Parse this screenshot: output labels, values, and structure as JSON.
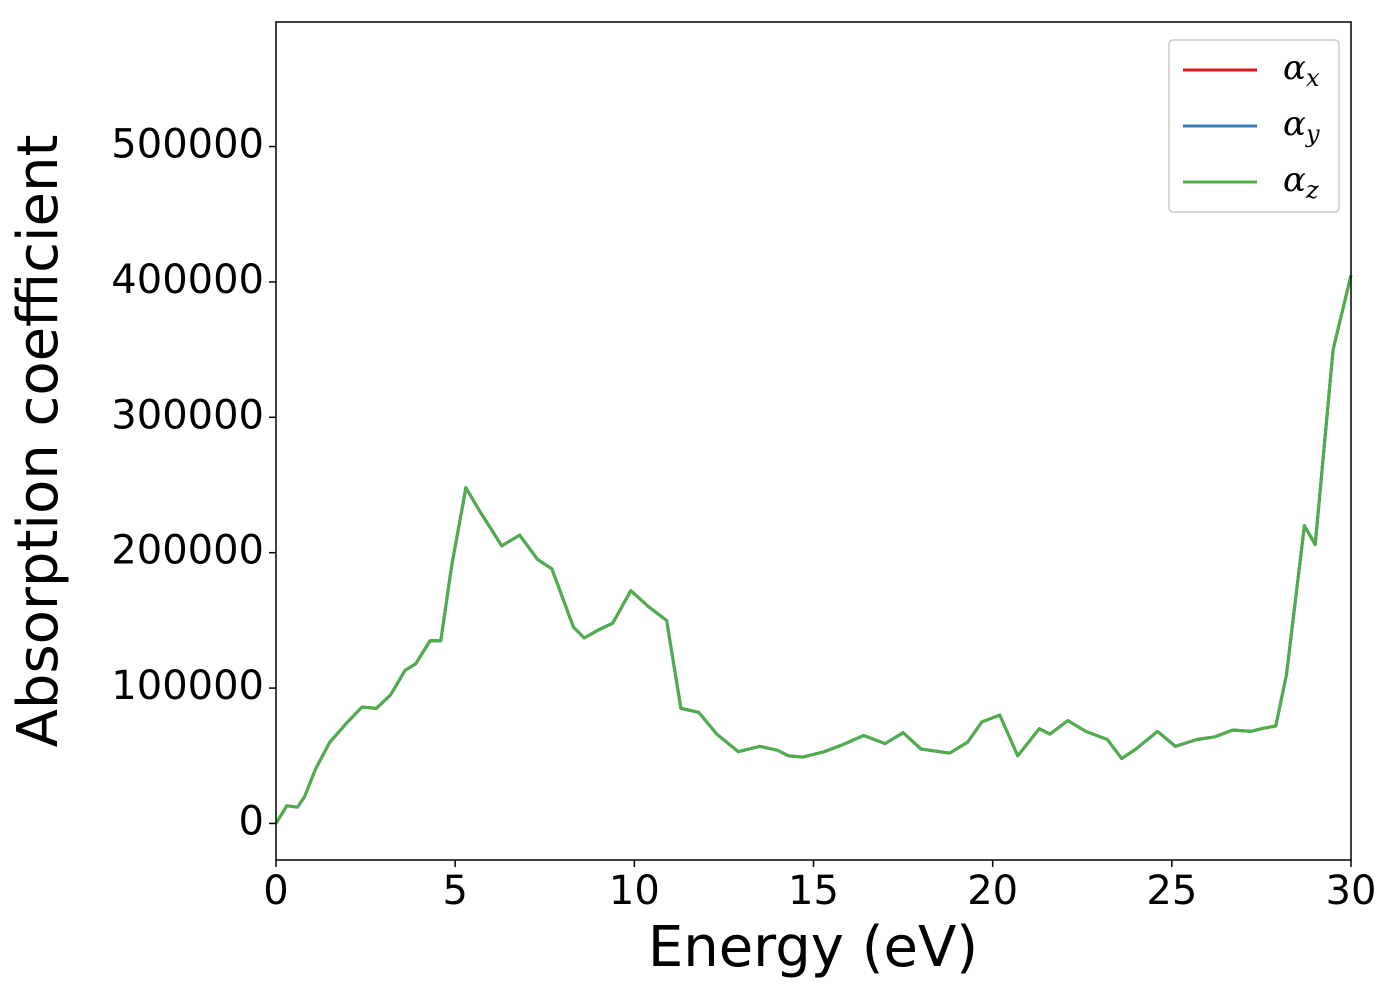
{
  "chart_data": {
    "type": "line",
    "xlabel": "Energy (eV)",
    "ylabel": "Absorption coefficient",
    "x": [
      0,
      0.3,
      0.6,
      0.8,
      1.1,
      1.5,
      2.0,
      2.4,
      2.8,
      3.2,
      3.6,
      3.9,
      4.3,
      4.6,
      4.9,
      5.3,
      5.7,
      6.3,
      6.8,
      7.3,
      7.7,
      8.3,
      8.6,
      9.0,
      9.4,
      9.9,
      10.4,
      10.9,
      11.3,
      11.8,
      12.3,
      12.9,
      13.5,
      14.0,
      14.3,
      14.7,
      15.3,
      15.8,
      16.4,
      17.0,
      17.5,
      18.0,
      18.8,
      19.3,
      19.7,
      20.2,
      20.7,
      21.3,
      21.6,
      22.1,
      22.6,
      23.2,
      23.6,
      24.0,
      24.6,
      25.1,
      25.7,
      26.2,
      26.7,
      27.2,
      27.5,
      27.9,
      28.2,
      28.7,
      29.0,
      29.5,
      30.0
    ],
    "series": [
      {
        "name": "αx",
        "color": "#e41a1c",
        "values": [
          0,
          13000,
          12000,
          20000,
          40000,
          60000,
          75000,
          86000,
          85000,
          95000,
          113000,
          118000,
          135000,
          135000,
          190000,
          248000,
          230000,
          205000,
          213000,
          195000,
          188000,
          145000,
          137000,
          143000,
          148000,
          172000,
          160000,
          150000,
          85000,
          82000,
          66000,
          53000,
          57000,
          54000,
          50000,
          49000,
          53000,
          58000,
          65000,
          59000,
          67000,
          55000,
          52000,
          60000,
          75000,
          80000,
          50000,
          70000,
          66000,
          76000,
          68000,
          62000,
          48000,
          55000,
          68000,
          57000,
          62000,
          64000,
          69000,
          68000,
          70000,
          72000,
          110000,
          220000,
          206000,
          350000,
          405000
        ]
      },
      {
        "name": "αy",
        "color": "#377eb8",
        "values": [
          0,
          13000,
          12000,
          20000,
          40000,
          60000,
          75000,
          86000,
          85000,
          95000,
          113000,
          118000,
          135000,
          135000,
          190000,
          248000,
          230000,
          205000,
          213000,
          195000,
          188000,
          145000,
          137000,
          143000,
          148000,
          172000,
          160000,
          150000,
          85000,
          82000,
          66000,
          53000,
          57000,
          54000,
          50000,
          49000,
          53000,
          58000,
          65000,
          59000,
          67000,
          55000,
          52000,
          60000,
          75000,
          80000,
          50000,
          70000,
          66000,
          76000,
          68000,
          62000,
          48000,
          55000,
          68000,
          57000,
          62000,
          64000,
          69000,
          68000,
          70000,
          72000,
          110000,
          220000,
          206000,
          350000,
          405000
        ]
      },
      {
        "name": "αz",
        "color": "#4daf4a",
        "values": [
          0,
          13000,
          12000,
          20000,
          40000,
          60000,
          75000,
          86000,
          85000,
          95000,
          113000,
          118000,
          135000,
          135000,
          190000,
          248000,
          230000,
          205000,
          213000,
          195000,
          188000,
          145000,
          137000,
          143000,
          148000,
          172000,
          160000,
          150000,
          85000,
          82000,
          66000,
          53000,
          57000,
          54000,
          50000,
          49000,
          53000,
          58000,
          65000,
          59000,
          67000,
          55000,
          52000,
          60000,
          75000,
          80000,
          50000,
          70000,
          66000,
          76000,
          68000,
          62000,
          48000,
          55000,
          68000,
          57000,
          62000,
          64000,
          69000,
          68000,
          70000,
          72000,
          110000,
          220000,
          206000,
          350000,
          405000
        ]
      }
    ],
    "xlim": [
      0,
      30
    ],
    "xticks": [
      0,
      5,
      10,
      15,
      20,
      25,
      30
    ],
    "ylim": [
      -27000,
      592000
    ],
    "yticks": [
      0,
      100000,
      200000,
      300000,
      400000,
      500000
    ],
    "legend": "upper right",
    "grid": false
  }
}
